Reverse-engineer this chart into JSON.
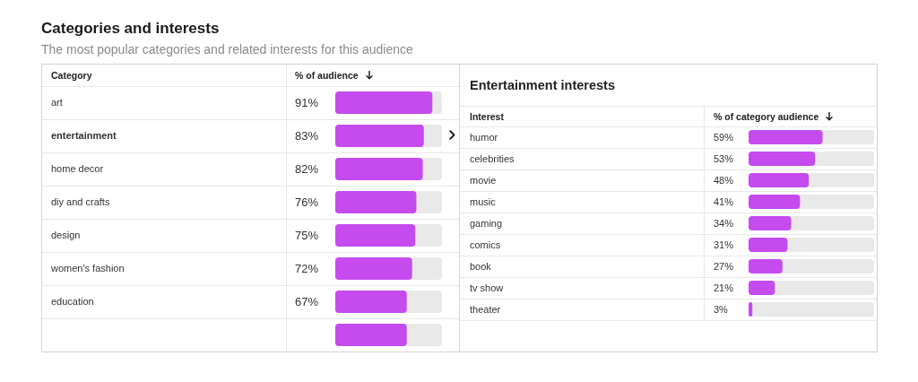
{
  "chart_data": [
    {
      "type": "bar",
      "title": "Categories and interests",
      "subtitle": "The most popular categories and related interests for this audience",
      "orientation": "horizontal",
      "ylabel": "Category",
      "xlabel": "% of audience",
      "categories": [
        "art",
        "entertainment",
        "home decor",
        "diy and crafts",
        "design",
        "women's fashion",
        "education",
        null
      ],
      "values": [
        91,
        83,
        82,
        76,
        75,
        72,
        67,
        67
      ],
      "value_labels": [
        "91%",
        "83%",
        "82%",
        "76%",
        "75%",
        "72%",
        "67%",
        null
      ],
      "color": "#c54bef",
      "xlim": [
        0,
        100
      ],
      "tick_labels": "y"
    },
    {
      "type": "bar",
      "title": "Entertainment interests",
      "orientation": "horizontal",
      "ylabel": "Interest",
      "xlabel": "% of category audience",
      "categories": [
        "humor",
        "celebrities",
        "movie",
        "music",
        "gaming",
        "comics",
        "book",
        "tv show",
        "theater"
      ],
      "values": [
        59,
        53,
        48,
        41,
        34,
        31,
        27,
        21,
        3
      ],
      "value_labels": [
        "59%",
        "53%",
        "48%",
        "41%",
        "34%",
        "31%",
        "27%",
        "21%",
        "3%"
      ],
      "color": "#c54bef",
      "xlim": [
        0,
        100
      ],
      "tick_labels": "y"
    }
  ]
}
